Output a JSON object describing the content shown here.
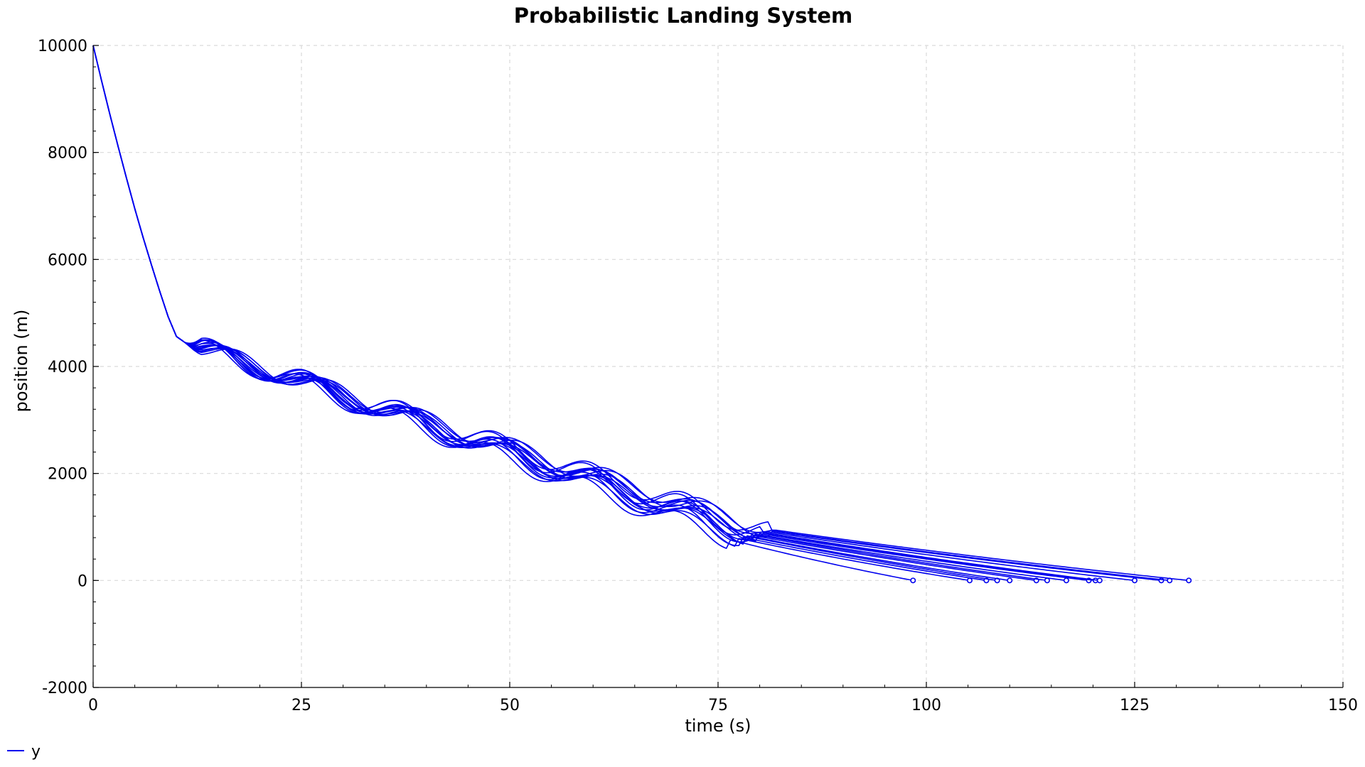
{
  "chart_data": {
    "type": "line",
    "title": "Probabilistic Landing System",
    "xlabel": "time (s)",
    "ylabel": "position (m)",
    "xlim": [
      0,
      150
    ],
    "ylim": [
      -2000,
      10000
    ],
    "xticks": [
      0,
      25,
      50,
      75,
      100,
      125,
      150
    ],
    "yticks": [
      -2000,
      0,
      2000,
      4000,
      6000,
      8000,
      10000
    ],
    "grid": true,
    "legend": {
      "position": "bottom-left",
      "entries": [
        "y"
      ]
    },
    "series_color": "#0000ee",
    "common_descent": [
      [
        0,
        10000
      ],
      [
        1,
        9350
      ],
      [
        2,
        8720
      ],
      [
        3,
        8110
      ],
      [
        4,
        7520
      ],
      [
        5,
        6950
      ],
      [
        6,
        6410
      ],
      [
        7,
        5900
      ],
      [
        8,
        5400
      ],
      [
        9,
        4930
      ],
      [
        10,
        4560
      ],
      [
        11,
        4450
      ]
    ],
    "series": [
      {
        "name": "y",
        "peak_offset": 0.0,
        "amplitude": 180,
        "break": [
          76.0,
          780
        ],
        "landing_time": 98.4
      },
      {
        "name": "y",
        "peak_offset": 1.0,
        "amplitude": 160,
        "break": [
          77.0,
          800
        ],
        "landing_time": 105.2
      },
      {
        "name": "y",
        "peak_offset": 0.5,
        "amplitude": 200,
        "break": [
          77.5,
          820
        ],
        "landing_time": 107.2
      },
      {
        "name": "y",
        "peak_offset": 1.5,
        "amplitude": 150,
        "break": [
          78.0,
          840
        ],
        "landing_time": 108.5
      },
      {
        "name": "y",
        "peak_offset": 2.0,
        "amplitude": 170,
        "break": [
          78.0,
          850
        ],
        "landing_time": 110.0
      },
      {
        "name": "y",
        "peak_offset": 0.8,
        "amplitude": 210,
        "break": [
          78.5,
          860
        ],
        "landing_time": 113.2
      },
      {
        "name": "y",
        "peak_offset": 2.5,
        "amplitude": 140,
        "break": [
          79.0,
          870
        ],
        "landing_time": 114.5
      },
      {
        "name": "y",
        "peak_offset": 1.2,
        "amplitude": 190,
        "break": [
          79.0,
          880
        ],
        "landing_time": 116.8
      },
      {
        "name": "y",
        "peak_offset": 3.0,
        "amplitude": 160,
        "break": [
          79.5,
          890
        ],
        "landing_time": 119.5
      },
      {
        "name": "y",
        "peak_offset": 0.3,
        "amplitude": 220,
        "break": [
          80.0,
          900
        ],
        "landing_time": 120.3
      },
      {
        "name": "y",
        "peak_offset": 2.2,
        "amplitude": 180,
        "break": [
          80.0,
          910
        ],
        "landing_time": 120.8
      },
      {
        "name": "y",
        "peak_offset": 1.8,
        "amplitude": 150,
        "break": [
          80.5,
          920
        ],
        "landing_time": 125.0
      },
      {
        "name": "y",
        "peak_offset": 3.5,
        "amplitude": 170,
        "break": [
          81.0,
          930
        ],
        "landing_time": 128.2
      },
      {
        "name": "y",
        "peak_offset": 0.6,
        "amplitude": 200,
        "break": [
          81.0,
          940
        ],
        "landing_time": 129.2
      },
      {
        "name": "y",
        "peak_offset": 2.8,
        "amplitude": 160,
        "break": [
          81.5,
          950
        ],
        "landing_time": 131.5
      }
    ]
  }
}
